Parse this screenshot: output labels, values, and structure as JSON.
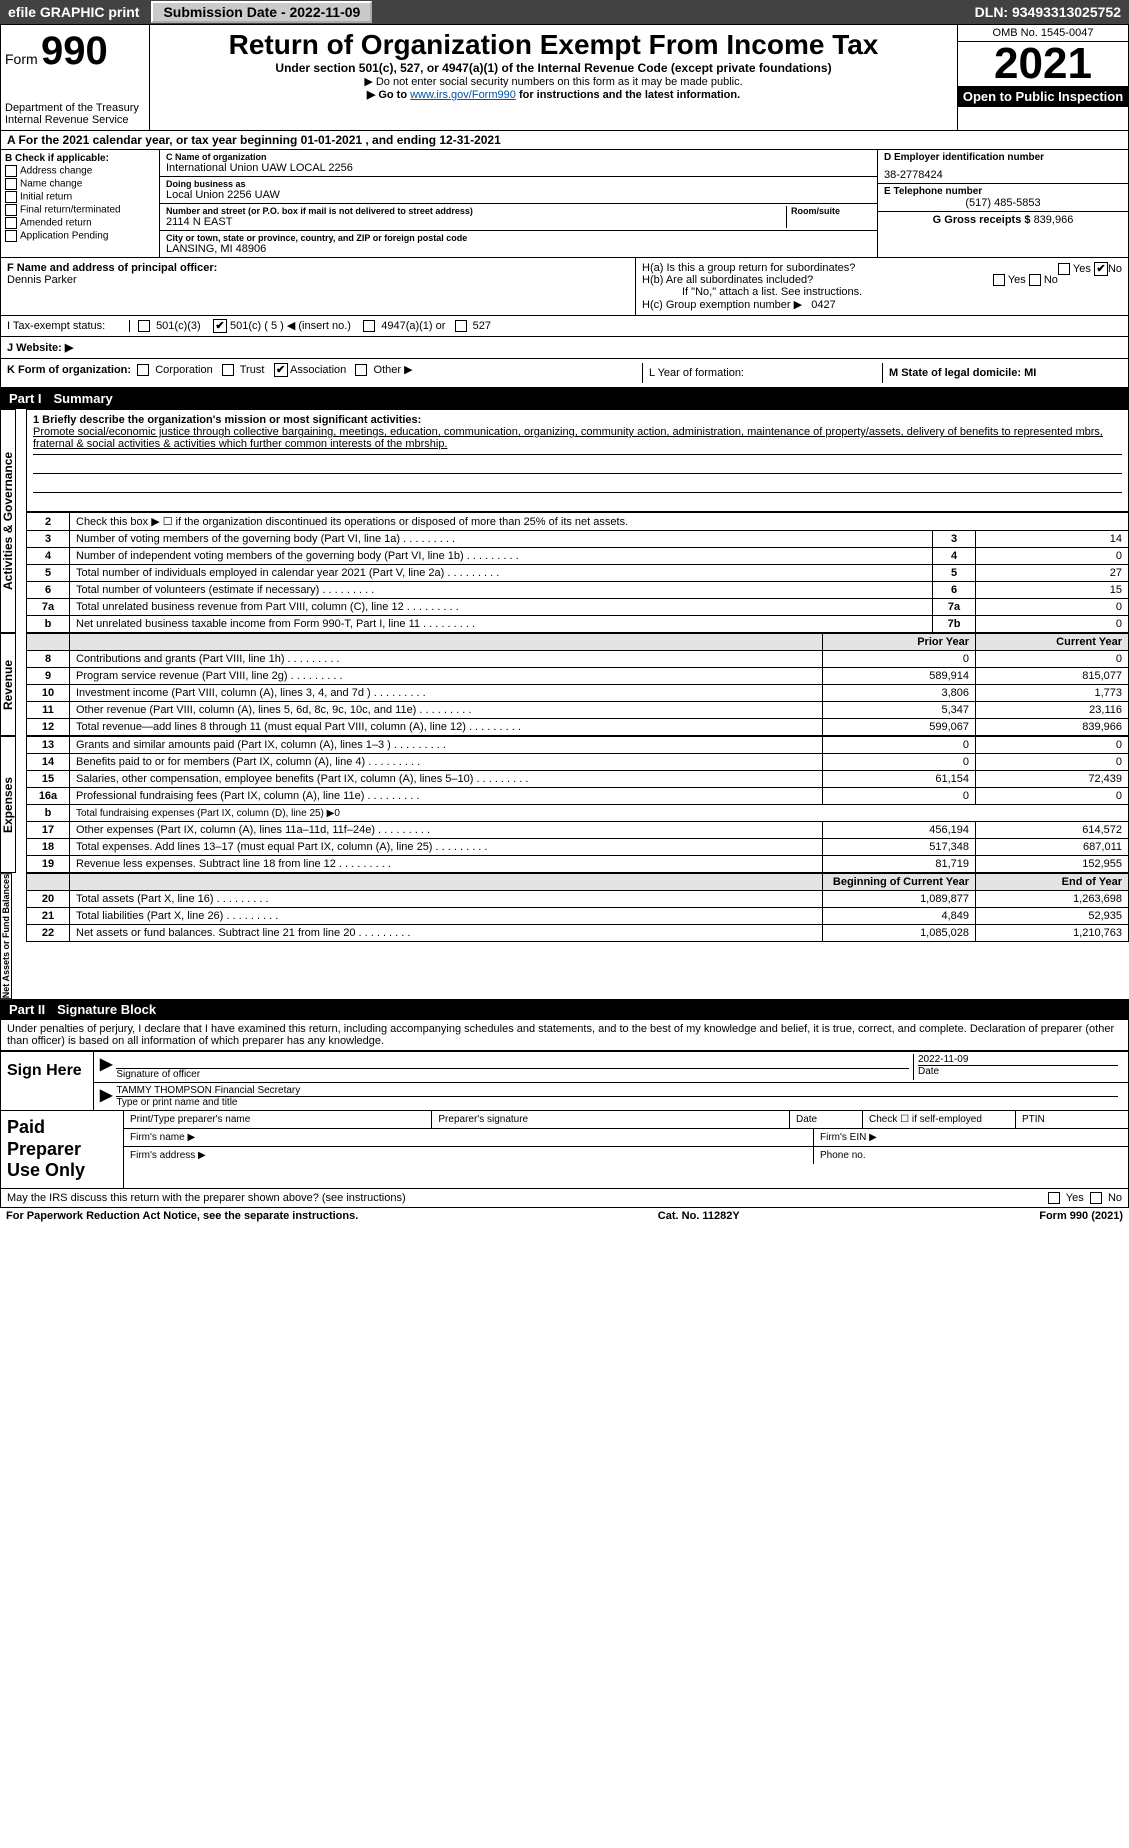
{
  "topbar": {
    "efile": "efile GRAPHIC print",
    "submission": "Submission Date - 2022-11-09",
    "dln": "DLN: 93493313025752"
  },
  "header": {
    "form_prefix": "Form",
    "form_no": "990",
    "title": "Return of Organization Exempt From Income Tax",
    "subtitle": "Under section 501(c), 527, or 4947(a)(1) of the Internal Revenue Code (except private foundations)",
    "note1": "▶ Do not enter social security numbers on this form as it may be made public.",
    "note2_pre": "▶ Go to ",
    "note2_link": "www.irs.gov/Form990",
    "note2_post": " for instructions and the latest information.",
    "dept": "Department of the Treasury",
    "irs": "Internal Revenue Service",
    "omb": "OMB No. 1545-0047",
    "year": "2021",
    "open_insp": "Open to Public Inspection"
  },
  "period": "A For the 2021 calendar year, or tax year beginning 01-01-2021    , and ending 12-31-2021",
  "colB": {
    "hdr": "B Check if applicable:",
    "items": [
      "Address change",
      "Name change",
      "Initial return",
      "Final return/terminated",
      "Amended return",
      "Application Pending"
    ]
  },
  "colC": {
    "name_lbl": "C Name of organization",
    "name": "International Union UAW LOCAL 2256",
    "dba_lbl": "Doing business as",
    "dba": "Local Union 2256 UAW",
    "addr_lbl": "Number and street (or P.O. box if mail is not delivered to street address)",
    "room_lbl": "Room/suite",
    "addr": "2114 N EAST",
    "city_lbl": "City or town, state or province, country, and ZIP or foreign postal code",
    "city": "LANSING, MI  48906"
  },
  "colDE": {
    "d_lbl": "D Employer identification number",
    "ein": "38-2778424",
    "e_lbl": "E Telephone number",
    "phone": "(517) 485-5853",
    "g_lbl": "G Gross receipts $",
    "gross": "839,966"
  },
  "fsec": {
    "f_lbl": "F  Name and address of principal officer:",
    "officer": "Dennis Parker",
    "h1a": "H(a)  Is this a group return for subordinates?",
    "h1b": "H(b)  Are all subordinates included?",
    "h1b_note": "If \"No,\" attach a list. See instructions.",
    "hc": "H(c)  Group exemption number ▶",
    "hc_val": "0427",
    "yes": "Yes",
    "no": "No"
  },
  "status": {
    "i": "I    Tax-exempt status:",
    "opts": [
      "501(c)(3)",
      "501(c) ( 5 ) ◀ (insert no.)",
      "4947(a)(1) or",
      "527"
    ]
  },
  "j": {
    "lbl": "J    Website: ▶"
  },
  "k": {
    "lbl": "K Form of organization:",
    "opts": [
      "Corporation",
      "Trust",
      "Association",
      "Other ▶"
    ]
  },
  "lm": {
    "l": "L Year of formation:",
    "m": "M State of legal domicile: MI"
  },
  "part1_hdr": {
    "num": "Part I",
    "title": "Summary"
  },
  "mission": {
    "lead": "1  Briefly describe the organization's mission or most significant activities:",
    "text": "Promote social/economic justice through collective bargaining, meetings, education, communication, organizing, community action, administration, maintenance of property/assets, delivery of benefits to represented mbrs, fraternal & social activities & activities which further common interests of the mbrship."
  },
  "gov": {
    "r2": "Check this box ▶ ☐  if the organization discontinued its operations or disposed of more than 25% of its net assets.",
    "rows": [
      {
        "n": "3",
        "d": "Number of voting members of the governing body (Part VI, line 1a)",
        "box": "3",
        "v": "14"
      },
      {
        "n": "4",
        "d": "Number of independent voting members of the governing body (Part VI, line 1b)",
        "box": "4",
        "v": "0"
      },
      {
        "n": "5",
        "d": "Total number of individuals employed in calendar year 2021 (Part V, line 2a)",
        "box": "5",
        "v": "27"
      },
      {
        "n": "6",
        "d": "Total number of volunteers (estimate if necessary)",
        "box": "6",
        "v": "15"
      },
      {
        "n": "7a",
        "d": "Total unrelated business revenue from Part VIII, column (C), line 12",
        "box": "7a",
        "v": "0"
      },
      {
        "n": "b",
        "d": "Net unrelated business taxable income from Form 990-T, Part I, line 11",
        "box": "7b",
        "v": "0"
      }
    ]
  },
  "cols": {
    "prior": "Prior Year",
    "current": "Current Year",
    "beg": "Beginning of Current Year",
    "end": "End of Year"
  },
  "revenue": [
    {
      "n": "8",
      "d": "Contributions and grants (Part VIII, line 1h)",
      "p": "0",
      "c": "0"
    },
    {
      "n": "9",
      "d": "Program service revenue (Part VIII, line 2g)",
      "p": "589,914",
      "c": "815,077"
    },
    {
      "n": "10",
      "d": "Investment income (Part VIII, column (A), lines 3, 4, and 7d )",
      "p": "3,806",
      "c": "1,773"
    },
    {
      "n": "11",
      "d": "Other revenue (Part VIII, column (A), lines 5, 6d, 8c, 9c, 10c, and 11e)",
      "p": "5,347",
      "c": "23,116"
    },
    {
      "n": "12",
      "d": "Total revenue—add lines 8 through 11 (must equal Part VIII, column (A), line 12)",
      "p": "599,067",
      "c": "839,966"
    }
  ],
  "expenses": [
    {
      "n": "13",
      "d": "Grants and similar amounts paid (Part IX, column (A), lines 1–3 )",
      "p": "0",
      "c": "0"
    },
    {
      "n": "14",
      "d": "Benefits paid to or for members (Part IX, column (A), line 4)",
      "p": "0",
      "c": "0"
    },
    {
      "n": "15",
      "d": "Salaries, other compensation, employee benefits (Part IX, column (A), lines 5–10)",
      "p": "61,154",
      "c": "72,439"
    },
    {
      "n": "16a",
      "d": "Professional fundraising fees (Part IX, column (A), line 11e)",
      "p": "0",
      "c": "0"
    },
    {
      "n": "b",
      "d": "Total fundraising expenses (Part IX, column (D), line 25) ▶0",
      "p": "",
      "c": "",
      "nb": true
    },
    {
      "n": "17",
      "d": "Other expenses (Part IX, column (A), lines 11a–11d, 11f–24e)",
      "p": "456,194",
      "c": "614,572"
    },
    {
      "n": "18",
      "d": "Total expenses. Add lines 13–17 (must equal Part IX, column (A), line 25)",
      "p": "517,348",
      "c": "687,011"
    },
    {
      "n": "19",
      "d": "Revenue less expenses. Subtract line 18 from line 12",
      "p": "81,719",
      "c": "152,955"
    }
  ],
  "netassets": [
    {
      "n": "20",
      "d": "Total assets (Part X, line 16)",
      "p": "1,089,877",
      "c": "1,263,698"
    },
    {
      "n": "21",
      "d": "Total liabilities (Part X, line 26)",
      "p": "4,849",
      "c": "52,935"
    },
    {
      "n": "22",
      "d": "Net assets or fund balances. Subtract line 21 from line 20",
      "p": "1,085,028",
      "c": "1,210,763"
    }
  ],
  "sides": {
    "ag": "Activities & Governance",
    "rev": "Revenue",
    "exp": "Expenses",
    "na": "Net Assets or Fund Balances"
  },
  "part2_hdr": {
    "num": "Part II",
    "title": "Signature Block"
  },
  "penalties": "Under penalties of perjury, I declare that I have examined this return, including accompanying schedules and statements, and to the best of my knowledge and belief, it is true, correct, and complete. Declaration of preparer (other than officer) is based on all information of which preparer has any knowledge.",
  "sign": {
    "here": "Sign Here",
    "sig_of": "Signature of officer",
    "date_lbl": "Date",
    "date": "2022-11-09",
    "name": "TAMMY THOMPSON Financial Secretary",
    "name_lbl": "Type or print name and title"
  },
  "paid": {
    "hdr": "Paid Preparer Use Only",
    "ptname": "Print/Type preparer's name",
    "psig": "Preparer's signature",
    "pdate": "Date",
    "pcheck": "Check ☐ if self-employed",
    "ptin": "PTIN",
    "fname": "Firm's name   ▶",
    "fein": "Firm's EIN ▶",
    "faddr": "Firm's address ▶",
    "fphone": "Phone no."
  },
  "discuss": "May the IRS discuss this return with the preparer shown above? (see instructions)",
  "footer": {
    "pra": "For Paperwork Reduction Act Notice, see the separate instructions.",
    "cat": "Cat. No. 11282Y",
    "form": "Form 990 (2021)"
  }
}
